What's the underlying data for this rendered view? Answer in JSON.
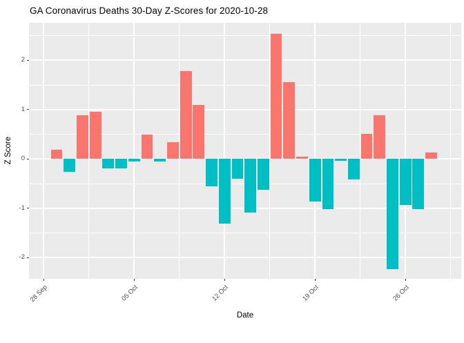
{
  "title": "GA Coronavirus Deaths 30-Day Z-Scores for 2020-10-28",
  "chart_data": {
    "type": "bar",
    "title": "GA Coronavirus Deaths 30-Day Z-Scores for 2020-10-28",
    "xlabel": "Date",
    "ylabel": "Z Score",
    "grid": true,
    "legend": "none",
    "panel_bg": "#EBEBEB",
    "grid_color": "#FFFFFF",
    "axis_text_color": "#4D4D4D",
    "bar_colors": {
      "positive": "#F8766D",
      "negative": "#00BFC4"
    },
    "x": [
      "2020-09-29",
      "2020-09-30",
      "2020-10-01",
      "2020-10-02",
      "2020-10-03",
      "2020-10-04",
      "2020-10-05",
      "2020-10-06",
      "2020-10-07",
      "2020-10-08",
      "2020-10-09",
      "2020-10-10",
      "2020-10-11",
      "2020-10-12",
      "2020-10-13",
      "2020-10-14",
      "2020-10-15",
      "2020-10-16",
      "2020-10-17",
      "2020-10-18",
      "2020-10-19",
      "2020-10-20",
      "2020-10-21",
      "2020-10-22",
      "2020-10-23",
      "2020-10-24",
      "2020-10-25",
      "2020-10-26",
      "2020-10-27",
      "2020-10-28"
    ],
    "values": [
      0.19,
      -0.26,
      0.88,
      0.95,
      -0.19,
      -0.19,
      -0.05,
      0.5,
      -0.05,
      0.34,
      1.78,
      1.1,
      -0.56,
      -1.31,
      -0.4,
      -1.09,
      -0.62,
      2.54,
      1.56,
      0.04,
      -0.86,
      -1.02,
      -0.04,
      -0.41,
      0.51,
      0.89,
      -2.23,
      -0.94,
      -1.02,
      0.13
    ],
    "x_axis": {
      "start_day": 1,
      "range_days": [
        -1.14,
        32.32
      ],
      "ticks": [
        {
          "label": "28 Sep",
          "day": 0
        },
        {
          "label": "05 Oct",
          "day": 7
        },
        {
          "label": "12 Oct",
          "day": 14
        },
        {
          "label": "19 Oct",
          "day": 21
        },
        {
          "label": "26 Oct",
          "day": 28
        }
      ],
      "minor_days": [
        3.5,
        10.5,
        17.5,
        24.5,
        31.5
      ]
    },
    "y_axis": {
      "range": [
        -2.43,
        2.76
      ],
      "ticks": [
        {
          "label": "2",
          "value": 2
        },
        {
          "label": "1",
          "value": 1
        },
        {
          "label": "0",
          "value": 0
        },
        {
          "label": "-1",
          "value": -1
        },
        {
          "label": "-2",
          "value": -2
        }
      ],
      "minor_values": [
        2.5,
        1.5,
        0.5,
        -0.5,
        -1.5,
        -2.5
      ]
    }
  }
}
